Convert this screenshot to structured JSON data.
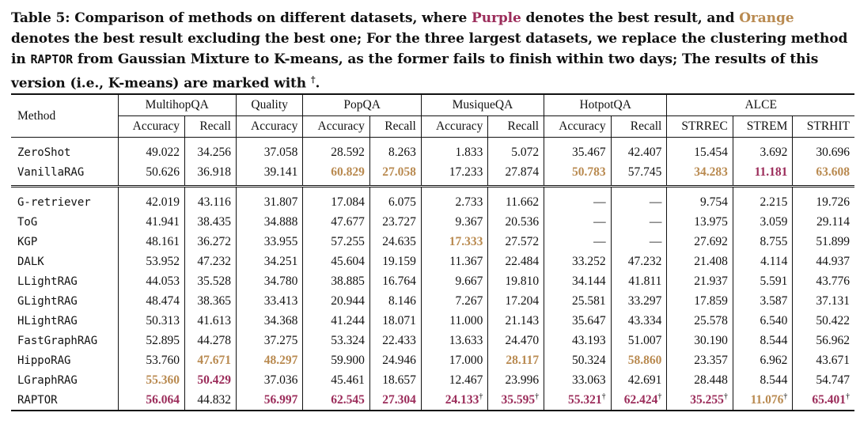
{
  "caption": {
    "part1": "Table 5: Comparison of methods on different datasets, where ",
    "purple_word": "Purple",
    "part2": " denotes the best result, and ",
    "orange_word": "Orange",
    "part3": " denotes the best result excluding the best one; For the three largest datasets, we replace the clustering method in ",
    "raptor": "RAPTOR",
    "part4": " from Gaussian Mixture to K-means, as the former fails to finish within two days; The results of this version (i.e., K-means) are marked with ",
    "dagger": "†",
    "part5": "."
  },
  "colors": {
    "best": "#9b2c5a",
    "second": "#b98a50"
  },
  "header": {
    "method": "Method",
    "groups": [
      {
        "name": "MultihopQA",
        "cols": [
          "Accuracy",
          "Recall"
        ]
      },
      {
        "name": "Quality",
        "cols": [
          "Accuracy"
        ]
      },
      {
        "name": "PopQA",
        "cols": [
          "Accuracy",
          "Recall"
        ]
      },
      {
        "name": "MusiqueQA",
        "cols": [
          "Accuracy",
          "Recall"
        ]
      },
      {
        "name": "HotpotQA",
        "cols": [
          "Accuracy",
          "Recall"
        ]
      },
      {
        "name": "ALCE",
        "cols": [
          "STRREC",
          "STREM",
          "STRHIT"
        ]
      }
    ]
  },
  "sections": [
    {
      "rows": [
        {
          "method": "ZeroShot",
          "cells": [
            {
              "v": "49.022"
            },
            {
              "v": "34.256"
            },
            {
              "v": "37.058"
            },
            {
              "v": "28.592"
            },
            {
              "v": "8.263"
            },
            {
              "v": "1.833"
            },
            {
              "v": "5.072"
            },
            {
              "v": "35.467"
            },
            {
              "v": "42.407"
            },
            {
              "v": "15.454"
            },
            {
              "v": "3.692"
            },
            {
              "v": "30.696"
            }
          ]
        },
        {
          "method": "VanillaRAG",
          "cells": [
            {
              "v": "50.626"
            },
            {
              "v": "36.918"
            },
            {
              "v": "39.141"
            },
            {
              "v": "60.829",
              "s": "second"
            },
            {
              "v": "27.058",
              "s": "second"
            },
            {
              "v": "17.233"
            },
            {
              "v": "27.874"
            },
            {
              "v": "50.783",
              "s": "second"
            },
            {
              "v": "57.745"
            },
            {
              "v": "34.283",
              "s": "second"
            },
            {
              "v": "11.181",
              "s": "best"
            },
            {
              "v": "63.608",
              "s": "second"
            }
          ]
        }
      ]
    },
    {
      "rows": [
        {
          "method": "G-retriever",
          "cells": [
            {
              "v": "42.019"
            },
            {
              "v": "43.116"
            },
            {
              "v": "31.807"
            },
            {
              "v": "17.084"
            },
            {
              "v": "6.075"
            },
            {
              "v": "2.733"
            },
            {
              "v": "11.662"
            },
            {
              "v": "—"
            },
            {
              "v": "—"
            },
            {
              "v": "9.754"
            },
            {
              "v": "2.215"
            },
            {
              "v": "19.726"
            }
          ]
        },
        {
          "method": "ToG",
          "cells": [
            {
              "v": "41.941"
            },
            {
              "v": "38.435"
            },
            {
              "v": "34.888"
            },
            {
              "v": "47.677"
            },
            {
              "v": "23.727"
            },
            {
              "v": "9.367"
            },
            {
              "v": "20.536"
            },
            {
              "v": "—"
            },
            {
              "v": "—"
            },
            {
              "v": "13.975"
            },
            {
              "v": "3.059"
            },
            {
              "v": "29.114"
            }
          ]
        },
        {
          "method": "KGP",
          "cells": [
            {
              "v": "48.161"
            },
            {
              "v": "36.272"
            },
            {
              "v": "33.955"
            },
            {
              "v": "57.255"
            },
            {
              "v": "24.635"
            },
            {
              "v": "17.333",
              "s": "second"
            },
            {
              "v": "27.572"
            },
            {
              "v": "—"
            },
            {
              "v": "—"
            },
            {
              "v": "27.692"
            },
            {
              "v": "8.755"
            },
            {
              "v": "51.899"
            }
          ]
        },
        {
          "method": "DALK",
          "cells": [
            {
              "v": "53.952"
            },
            {
              "v": "47.232"
            },
            {
              "v": "34.251"
            },
            {
              "v": "45.604"
            },
            {
              "v": "19.159"
            },
            {
              "v": "11.367"
            },
            {
              "v": "22.484"
            },
            {
              "v": "33.252"
            },
            {
              "v": "47.232"
            },
            {
              "v": "21.408"
            },
            {
              "v": "4.114"
            },
            {
              "v": "44.937"
            }
          ]
        },
        {
          "method": "LLightRAG",
          "cells": [
            {
              "v": "44.053"
            },
            {
              "v": "35.528"
            },
            {
              "v": "34.780"
            },
            {
              "v": "38.885"
            },
            {
              "v": "16.764"
            },
            {
              "v": "9.667"
            },
            {
              "v": "19.810"
            },
            {
              "v": "34.144"
            },
            {
              "v": "41.811"
            },
            {
              "v": "21.937"
            },
            {
              "v": "5.591"
            },
            {
              "v": "43.776"
            }
          ]
        },
        {
          "method": "GLightRAG",
          "cells": [
            {
              "v": "48.474"
            },
            {
              "v": "38.365"
            },
            {
              "v": "33.413"
            },
            {
              "v": "20.944"
            },
            {
              "v": "8.146"
            },
            {
              "v": "7.267"
            },
            {
              "v": "17.204"
            },
            {
              "v": "25.581"
            },
            {
              "v": "33.297"
            },
            {
              "v": "17.859"
            },
            {
              "v": "3.587"
            },
            {
              "v": "37.131"
            }
          ]
        },
        {
          "method": "HLightRAG",
          "cells": [
            {
              "v": "50.313"
            },
            {
              "v": "41.613"
            },
            {
              "v": "34.368"
            },
            {
              "v": "41.244"
            },
            {
              "v": "18.071"
            },
            {
              "v": "11.000"
            },
            {
              "v": "21.143"
            },
            {
              "v": "35.647"
            },
            {
              "v": "43.334"
            },
            {
              "v": "25.578"
            },
            {
              "v": "6.540"
            },
            {
              "v": "50.422"
            }
          ]
        },
        {
          "method": "FastGraphRAG",
          "cells": [
            {
              "v": "52.895"
            },
            {
              "v": "44.278"
            },
            {
              "v": "37.275"
            },
            {
              "v": "53.324"
            },
            {
              "v": "22.433"
            },
            {
              "v": "13.633"
            },
            {
              "v": "24.470"
            },
            {
              "v": "43.193"
            },
            {
              "v": "51.007"
            },
            {
              "v": "30.190"
            },
            {
              "v": "8.544"
            },
            {
              "v": "56.962"
            }
          ]
        },
        {
          "method": "HippoRAG",
          "cells": [
            {
              "v": "53.760"
            },
            {
              "v": "47.671",
              "s": "second"
            },
            {
              "v": "48.297",
              "s": "second"
            },
            {
              "v": "59.900"
            },
            {
              "v": "24.946"
            },
            {
              "v": "17.000"
            },
            {
              "v": "28.117",
              "s": "second"
            },
            {
              "v": "50.324"
            },
            {
              "v": "58.860",
              "s": "second"
            },
            {
              "v": "23.357"
            },
            {
              "v": "6.962"
            },
            {
              "v": "43.671"
            }
          ]
        },
        {
          "method": "LGraphRAG",
          "cells": [
            {
              "v": "55.360",
              "s": "second"
            },
            {
              "v": "50.429",
              "s": "best"
            },
            {
              "v": "37.036"
            },
            {
              "v": "45.461"
            },
            {
              "v": "18.657"
            },
            {
              "v": "12.467"
            },
            {
              "v": "23.996"
            },
            {
              "v": "33.063"
            },
            {
              "v": "42.691"
            },
            {
              "v": "28.448"
            },
            {
              "v": "8.544"
            },
            {
              "v": "54.747"
            }
          ]
        },
        {
          "method": "RAPTOR",
          "cells": [
            {
              "v": "56.064",
              "s": "best"
            },
            {
              "v": "44.832"
            },
            {
              "v": "56.997",
              "s": "best"
            },
            {
              "v": "62.545",
              "s": "best"
            },
            {
              "v": "27.304",
              "s": "best"
            },
            {
              "v": "24.133",
              "s": "best",
              "d": "†"
            },
            {
              "v": "35.595",
              "s": "best",
              "d": "†"
            },
            {
              "v": "55.321",
              "s": "best",
              "d": "†"
            },
            {
              "v": "62.424",
              "s": "best",
              "d": "†"
            },
            {
              "v": "35.255",
              "s": "best",
              "d": "†"
            },
            {
              "v": "11.076",
              "s": "second",
              "d": "†"
            },
            {
              "v": "65.401",
              "s": "best",
              "d": "†"
            }
          ]
        }
      ]
    }
  ]
}
